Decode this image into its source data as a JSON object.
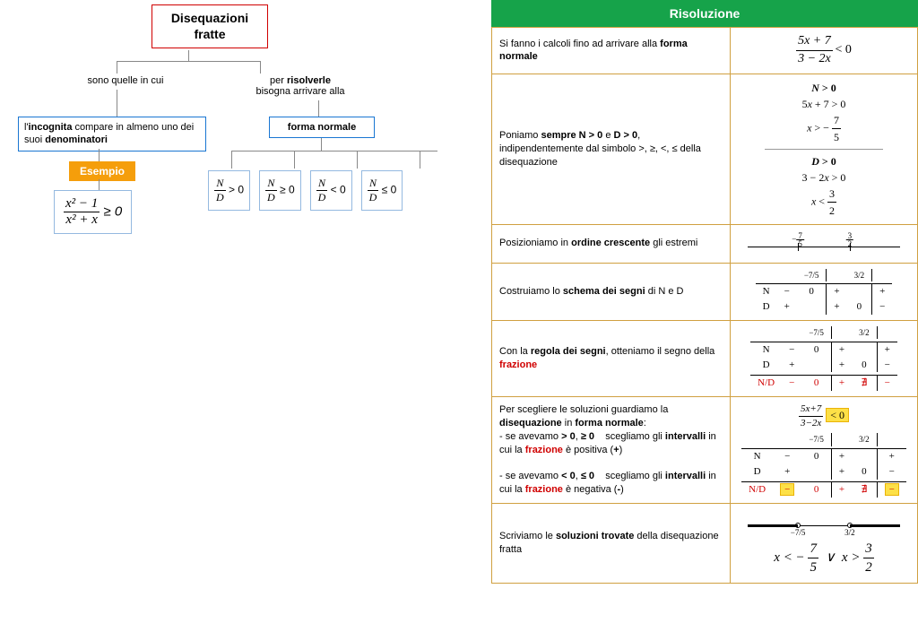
{
  "title": "Disequazioni fratte",
  "branch_left": "sono quelle in cui",
  "branch_right_1": "per",
  "branch_right_2": "risolverle",
  "branch_right_3": "bisogna arrivare alla",
  "def_html": "l'<b>incognita</b> compare in almeno uno dei suoi <b>denominatori</b>",
  "esempio": "Esempio",
  "forma": "forma normale",
  "nd_ops": [
    "> 0",
    "≥ 0",
    "< 0",
    "≤ 0"
  ],
  "example": {
    "num": "x² − 1",
    "den": "x² + x",
    "op": "≥ 0"
  },
  "ris_header": "Risoluzione",
  "rows": {
    "r1": "Si fanno i calcoli fino ad arrivare alla <b>forma normale</b>",
    "f1": {
      "num": "5x + 7",
      "den": "3 − 2x",
      "op": "< 0"
    },
    "r2": "Poniamo <b>sempre N > 0</b> e <b>D > 0</b>, indipendentemente dal simbolo >, ≥, <, ≤ della disequazione",
    "r3": "Posizioniamo in <b>ordine crescente</b> gli estremi",
    "r4": "Costruiamo lo <b>schema dei segni</b> di N e D",
    "r5": "Con la <b>regola dei segni</b>, otteniamo il segno della <span class='red'><b>frazione</b></span>",
    "r6": "Per scegliere le soluzioni guardiamo la <b>disequazione</b> in <b>forma normale</b>:<br>- se avevamo <b>> 0</b>, <b>≥ 0</b> &nbsp;&nbsp; scegliamo gli <b>intervalli</b> in cui la <span class='red'><b>frazione</b></span> è positiva (<b>+</b>)<br><br>- se avevamo <b>< 0</b>, <b>≤ 0</b> &nbsp;&nbsp; scegliamo gli <b>intervalli</b> in cui la <span class='red'><b>frazione</b></span> è negativa (<b>-</b>)",
    "r7": "Scriviamo le <b>soluzioni trovate</b> della disequazione fratta"
  },
  "extremes": {
    "a_num": "7",
    "a_den": "5",
    "a_sign": "−",
    "b_num": "3",
    "b_den": "2"
  },
  "signs": {
    "N": [
      "−",
      "0",
      "+",
      "",
      "+"
    ],
    "D": [
      "+",
      "",
      "+",
      "0",
      "−"
    ],
    "F": [
      "−",
      "0",
      "+",
      "∄",
      "−"
    ]
  },
  "sol": "x < −7/5  ∨  x > 3/2",
  "colors": {
    "title_border": "#d00000",
    "blue_border": "#1976d2",
    "lightblue": "#94b9e0",
    "orange_bg": "#f59e0b",
    "green": "#16a34a",
    "cell_border": "#d0a040",
    "highlight": "#fde047"
  }
}
